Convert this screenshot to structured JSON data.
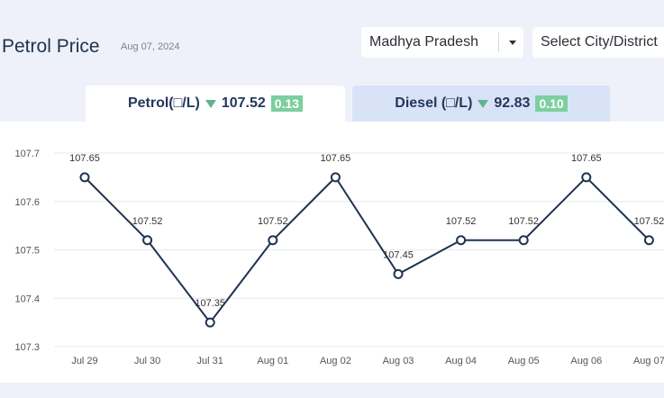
{
  "header": {
    "title": "Petrol Price",
    "date": "Aug 07, 2024",
    "state_select": "Madhya Pradesh",
    "city_select": "Select City/District"
  },
  "tabs": {
    "petrol": {
      "label": "Petrol(□/L)",
      "price": "107.52",
      "change": "0.13",
      "direction": "down"
    },
    "diesel": {
      "label": "Diesel (□/L)",
      "price": "92.83",
      "change": "0.10",
      "direction": "down"
    }
  },
  "colors": {
    "line": "#1e3350",
    "down_arrow": "#5fb38f",
    "change_badge": "#7ccf9e",
    "active_tab": "#ffffff",
    "inactive_tab": "#d9e3f7"
  },
  "chart_data": {
    "type": "line",
    "categories": [
      "Jul 29",
      "Jul 30",
      "Jul 31",
      "Aug 01",
      "Aug 02",
      "Aug 03",
      "Aug 04",
      "Aug 05",
      "Aug 06",
      "Aug 07"
    ],
    "values": [
      107.65,
      107.52,
      107.35,
      107.52,
      107.65,
      107.45,
      107.52,
      107.52,
      107.65,
      107.52
    ],
    "data_labels": [
      "107.65",
      "107.52",
      "107.35",
      "107.52",
      "107.65",
      "107.45",
      "107.52",
      "107.52",
      "107.65",
      "107.52"
    ],
    "yticks": [
      "107.3",
      "107.4",
      "107.5",
      "107.6",
      "107.7"
    ],
    "ylim": [
      107.3,
      107.7
    ],
    "grid": true
  }
}
